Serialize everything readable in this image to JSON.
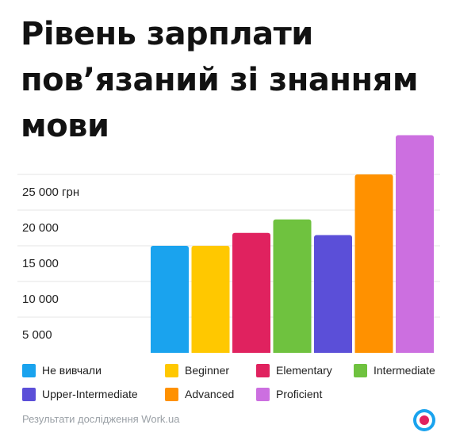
{
  "title": {
    "lines": [
      "Рівень зарплати",
      "пов’язаний зі знанням",
      "мови"
    ]
  },
  "chart_data": {
    "type": "bar",
    "categories": [
      "Не вивчали",
      "Beginner",
      "Elementary",
      "Intermediate",
      "Upper-Intermediate",
      "Advanced",
      "Proficient"
    ],
    "values": [
      15000,
      15000,
      16800,
      18700,
      16500,
      25000,
      30500
    ],
    "colors": [
      "#1aa3ee",
      "#ffc800",
      "#e0225f",
      "#6fc23f",
      "#5b4fd8",
      "#ff9100",
      "#cc6fe0"
    ],
    "y_ticks": [
      {
        "value": 5000,
        "label": "5 000"
      },
      {
        "value": 10000,
        "label": "10 000"
      },
      {
        "value": 15000,
        "label": "15 000"
      },
      {
        "value": 20000,
        "label": "20 000"
      },
      {
        "value": 25000,
        "label": "25 000 грн"
      }
    ],
    "ylim": [
      0,
      30000
    ],
    "grid": true,
    "legend": "bottom"
  },
  "source": "Результати дослідження Work.ua",
  "logo_icon": "work-ua-target-icon"
}
